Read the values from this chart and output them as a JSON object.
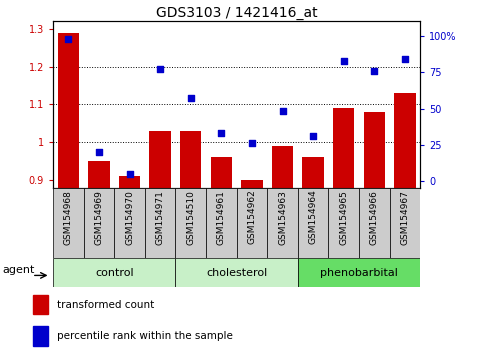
{
  "title": "GDS3103 / 1421416_at",
  "samples": [
    "GSM154968",
    "GSM154969",
    "GSM154970",
    "GSM154971",
    "GSM154510",
    "GSM154961",
    "GSM154962",
    "GSM154963",
    "GSM154964",
    "GSM154965",
    "GSM154966",
    "GSM154967"
  ],
  "transformed_count": [
    1.29,
    0.95,
    0.91,
    1.03,
    1.03,
    0.96,
    0.9,
    0.99,
    0.96,
    1.09,
    1.08,
    1.13
  ],
  "percentile_rank": [
    98,
    20,
    5,
    77,
    57,
    33,
    26,
    48,
    31,
    83,
    76,
    84
  ],
  "group_labels": [
    "control",
    "cholesterol",
    "phenobarbital"
  ],
  "group_starts": [
    0,
    4,
    8
  ],
  "group_ends": [
    4,
    8,
    12
  ],
  "group_colors": [
    "#c8f0c8",
    "#c8f0c8",
    "#66dd66"
  ],
  "ylim_left": [
    0.88,
    1.32
  ],
  "ylim_right": [
    -4.4,
    110
  ],
  "yticks_left": [
    0.9,
    1.0,
    1.1,
    1.2,
    1.3
  ],
  "ytick_labels_left": [
    "0.9",
    "1",
    "1.1",
    "1.2",
    "1.3"
  ],
  "yticks_right": [
    0,
    25,
    50,
    75,
    100
  ],
  "ytick_labels_right": [
    "0",
    "25",
    "50",
    "75",
    "100%"
  ],
  "bar_color": "#cc0000",
  "scatter_color": "#0000cc",
  "bar_width": 0.7,
  "title_fontsize": 10,
  "tick_fontsize": 7,
  "label_fontsize": 6.5,
  "group_fontsize": 8,
  "legend_fontsize": 7.5,
  "grid_yticks": [
    1.0,
    1.1,
    1.2
  ],
  "label_box_color": "#cccccc",
  "agent_label": "agent"
}
